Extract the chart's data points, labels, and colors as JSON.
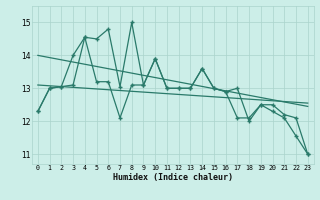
{
  "xlabel": "Humidex (Indice chaleur)",
  "bg_color": "#cceee8",
  "grid_color": "#aad4cc",
  "line_color": "#2a7a6a",
  "xlim": [
    -0.5,
    23.5
  ],
  "ylim": [
    10.7,
    15.5
  ],
  "yticks": [
    11,
    12,
    13,
    14,
    15
  ],
  "xticks": [
    0,
    1,
    2,
    3,
    4,
    5,
    6,
    7,
    8,
    9,
    10,
    11,
    12,
    13,
    14,
    15,
    16,
    17,
    18,
    19,
    20,
    21,
    22,
    23
  ],
  "series1": [
    12.3,
    13.0,
    13.05,
    13.1,
    14.55,
    14.5,
    14.8,
    13.05,
    15.0,
    13.1,
    13.9,
    13.0,
    13.0,
    13.0,
    13.6,
    13.0,
    12.9,
    13.0,
    12.0,
    12.5,
    12.3,
    12.1,
    11.55,
    11.0
  ],
  "series2": [
    12.3,
    13.0,
    13.05,
    14.0,
    14.55,
    13.2,
    13.2,
    12.1,
    13.1,
    13.1,
    13.9,
    13.0,
    13.0,
    13.0,
    13.6,
    13.0,
    12.9,
    12.1,
    12.1,
    12.5,
    12.5,
    12.2,
    12.1,
    11.0
  ],
  "trend1": [
    14.0,
    12.45
  ],
  "trend2": [
    13.1,
    12.55
  ]
}
